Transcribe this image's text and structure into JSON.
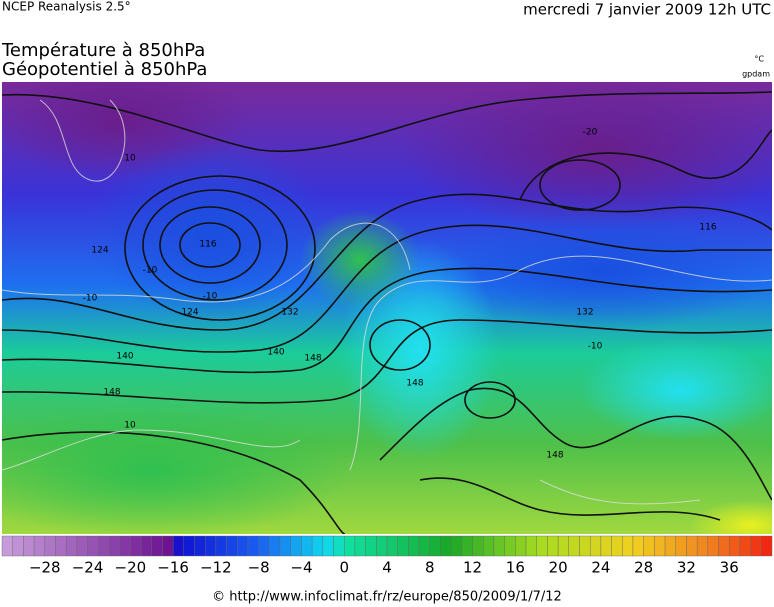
{
  "header": {
    "source": "NCEP Reanalysis 2.5°",
    "date": "mercredi 7 janvier 2009 12h UTC"
  },
  "title": {
    "line1": "Température à 850hPa",
    "line2": "Géopotentiel à 850hPa"
  },
  "units": {
    "temperature": "°C",
    "geopotential": "gpdam"
  },
  "contour_labels": [
    "116",
    "124",
    "124",
    "132",
    "140",
    "140",
    "148",
    "148",
    "148",
    "10",
    "-10",
    "-10",
    "10",
    "-20",
    "116",
    "148",
    "132",
    "-10",
    "-10"
  ],
  "colorbar": {
    "lim": [
      -32,
      40
    ],
    "ticks": [
      {
        "value": -28,
        "label": "−28"
      },
      {
        "value": -24,
        "label": "−24"
      },
      {
        "value": -20,
        "label": "−20"
      },
      {
        "value": -16,
        "label": "−16"
      },
      {
        "value": -12,
        "label": "−12"
      },
      {
        "value": -8,
        "label": "−8"
      },
      {
        "value": -4,
        "label": "−4"
      },
      0,
      4,
      8,
      12,
      16,
      20,
      24,
      28,
      32,
      36
    ]
  },
  "footer": "© http://www.infoclimat.fr/rz/europe/850/2009/1/7/12"
}
